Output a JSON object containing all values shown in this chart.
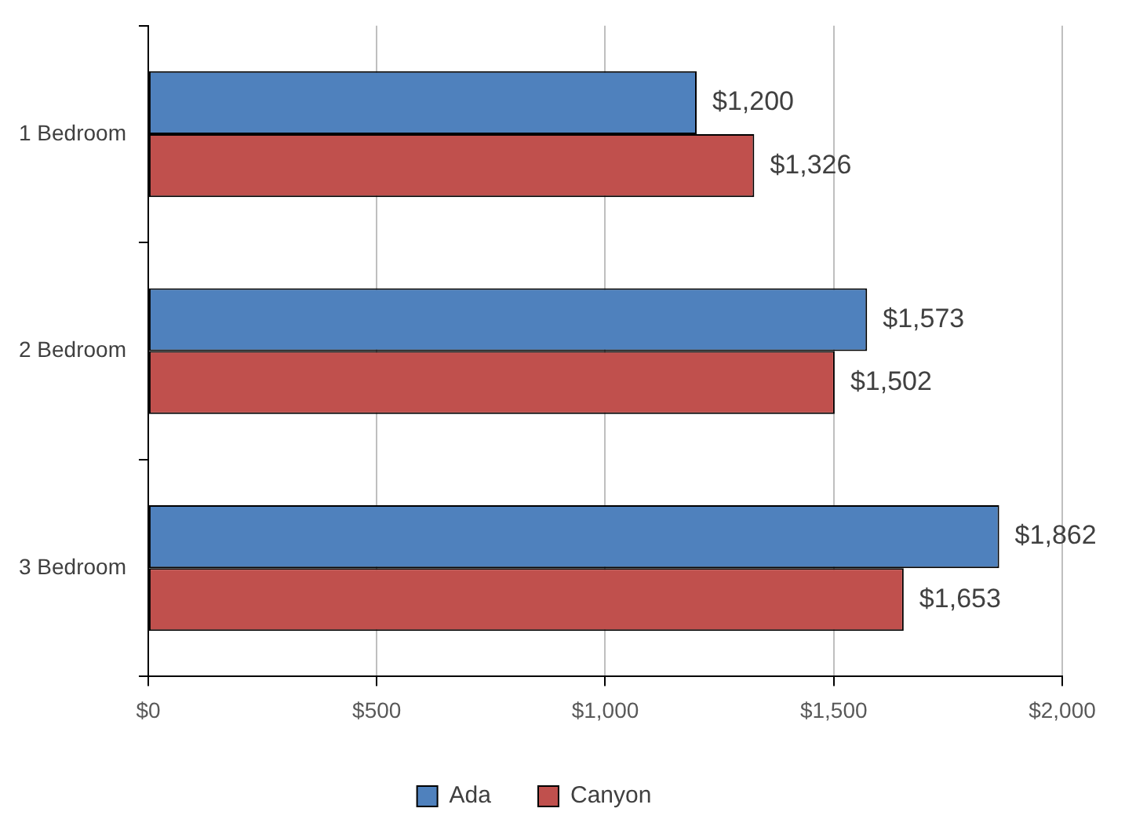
{
  "chart_data": {
    "type": "bar",
    "orientation": "horizontal",
    "categories": [
      "1 Bedroom",
      "2 Bedroom",
      "3 Bedroom"
    ],
    "series": [
      {
        "name": "Ada",
        "color": "#4f81bd",
        "values": [
          1200,
          1573,
          1862
        ],
        "value_labels": [
          "$1,200",
          "$1,573",
          "$1,862"
        ]
      },
      {
        "name": "Canyon",
        "color": "#c0504d",
        "values": [
          1326,
          1502,
          1653
        ],
        "value_labels": [
          "$1,326",
          "$1,502",
          "$1,653"
        ]
      }
    ],
    "xlim": [
      0,
      2000
    ],
    "xticks": [
      {
        "value": 0,
        "label": "$0"
      },
      {
        "value": 500,
        "label": "$500"
      },
      {
        "value": 1000,
        "label": "$1,000"
      },
      {
        "value": 1500,
        "label": "$1,500"
      },
      {
        "value": 2000,
        "label": "$2,000"
      }
    ],
    "grid": "x",
    "legend": "bottom"
  }
}
